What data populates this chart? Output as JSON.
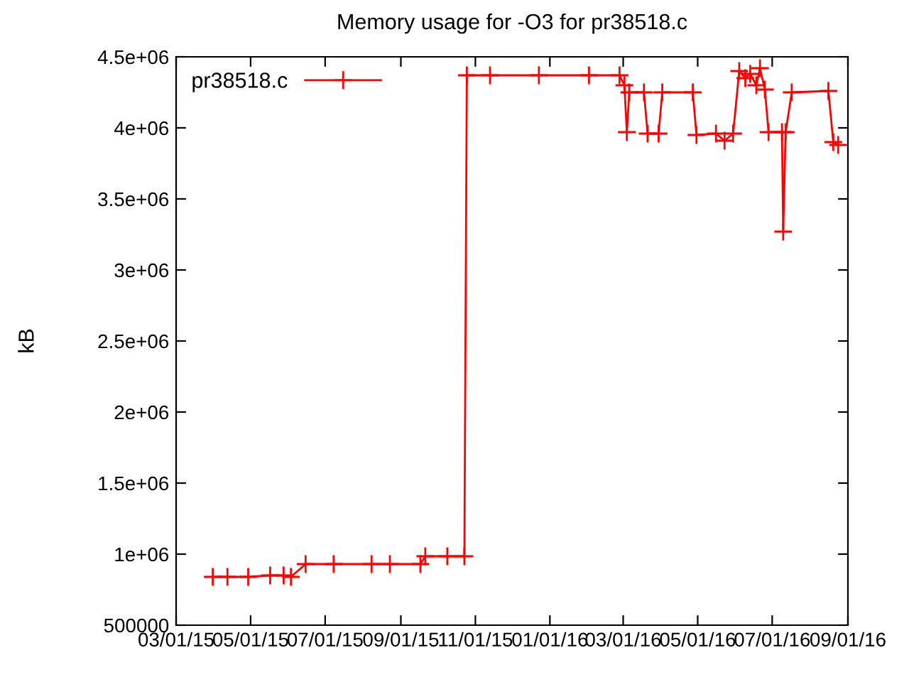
{
  "chart_data": {
    "type": "line",
    "title": "Memory usage for -O3 for pr38518.c",
    "ylabel": "kB",
    "series": [
      {
        "name": "pr38518.c",
        "color": "#ff0000",
        "x": [
          "2015-03-31",
          "2015-04-12",
          "2015-04-29",
          "2015-05-17",
          "2015-05-28",
          "2015-06-03",
          "2015-06-15",
          "2015-07-08",
          "2015-08-08",
          "2015-08-23",
          "2015-09-17",
          "2015-09-21",
          "2015-10-09",
          "2015-10-23",
          "2015-10-25",
          "2015-11-13",
          "2015-12-23",
          "2016-02-02",
          "2016-02-27",
          "2016-03-02",
          "2016-03-04",
          "2016-03-06",
          "2016-03-18",
          "2016-03-21",
          "2016-03-30",
          "2016-04-02",
          "2016-04-27",
          "2016-04-30",
          "2016-05-16",
          "2016-05-23",
          "2016-05-30",
          "2016-06-04",
          "2016-06-09",
          "2016-06-13",
          "2016-06-18",
          "2016-06-21",
          "2016-06-25",
          "2016-06-28",
          "2016-07-09",
          "2016-07-10",
          "2016-07-12",
          "2016-07-17",
          "2016-08-16",
          "2016-08-20",
          "2016-08-24"
        ],
        "values": [
          840000,
          840000,
          840000,
          850000,
          850000,
          840000,
          930000,
          930000,
          930000,
          930000,
          930000,
          985000,
          985000,
          985000,
          4370000,
          4370000,
          4370000,
          4370000,
          4370000,
          4300000,
          3970000,
          4250000,
          4250000,
          3960000,
          3960000,
          4250000,
          4250000,
          3950000,
          3960000,
          3910000,
          3960000,
          4400000,
          4350000,
          4380000,
          4300000,
          4420000,
          4270000,
          3970000,
          3970000,
          3270000,
          3970000,
          4250000,
          4260000,
          3900000,
          3880000
        ]
      }
    ],
    "xlim": [
      "2015-03-01",
      "2016-09-01"
    ],
    "xticks": [
      {
        "value": "2015-03-01",
        "label": "03/01/15"
      },
      {
        "value": "2015-05-01",
        "label": "05/01/15"
      },
      {
        "value": "2015-07-01",
        "label": "07/01/15"
      },
      {
        "value": "2015-09-01",
        "label": "09/01/15"
      },
      {
        "value": "2015-11-01",
        "label": "11/01/15"
      },
      {
        "value": "2016-01-01",
        "label": "01/01/16"
      },
      {
        "value": "2016-03-01",
        "label": "03/01/16"
      },
      {
        "value": "2016-05-01",
        "label": "05/01/16"
      },
      {
        "value": "2016-07-01",
        "label": "07/01/16"
      },
      {
        "value": "2016-09-01",
        "label": "09/01/16"
      }
    ],
    "ylim": [
      500000,
      4500000
    ],
    "yticks": [
      500000,
      {
        "value": 1000000,
        "label": "1e+06"
      },
      {
        "value": 1500000,
        "label": "1.5e+06"
      },
      {
        "value": 2000000,
        "label": "2e+06"
      },
      {
        "value": 2500000,
        "label": "2.5e+06"
      },
      {
        "value": 3000000,
        "label": "3e+06"
      },
      {
        "value": 3500000,
        "label": "3.5e+06"
      },
      {
        "value": 4000000,
        "label": "4e+06"
      },
      {
        "value": 4500000,
        "label": "4.5e+06"
      }
    ],
    "grid": false,
    "legend": "top left",
    "marker": "cross",
    "line_style": "solid"
  }
}
